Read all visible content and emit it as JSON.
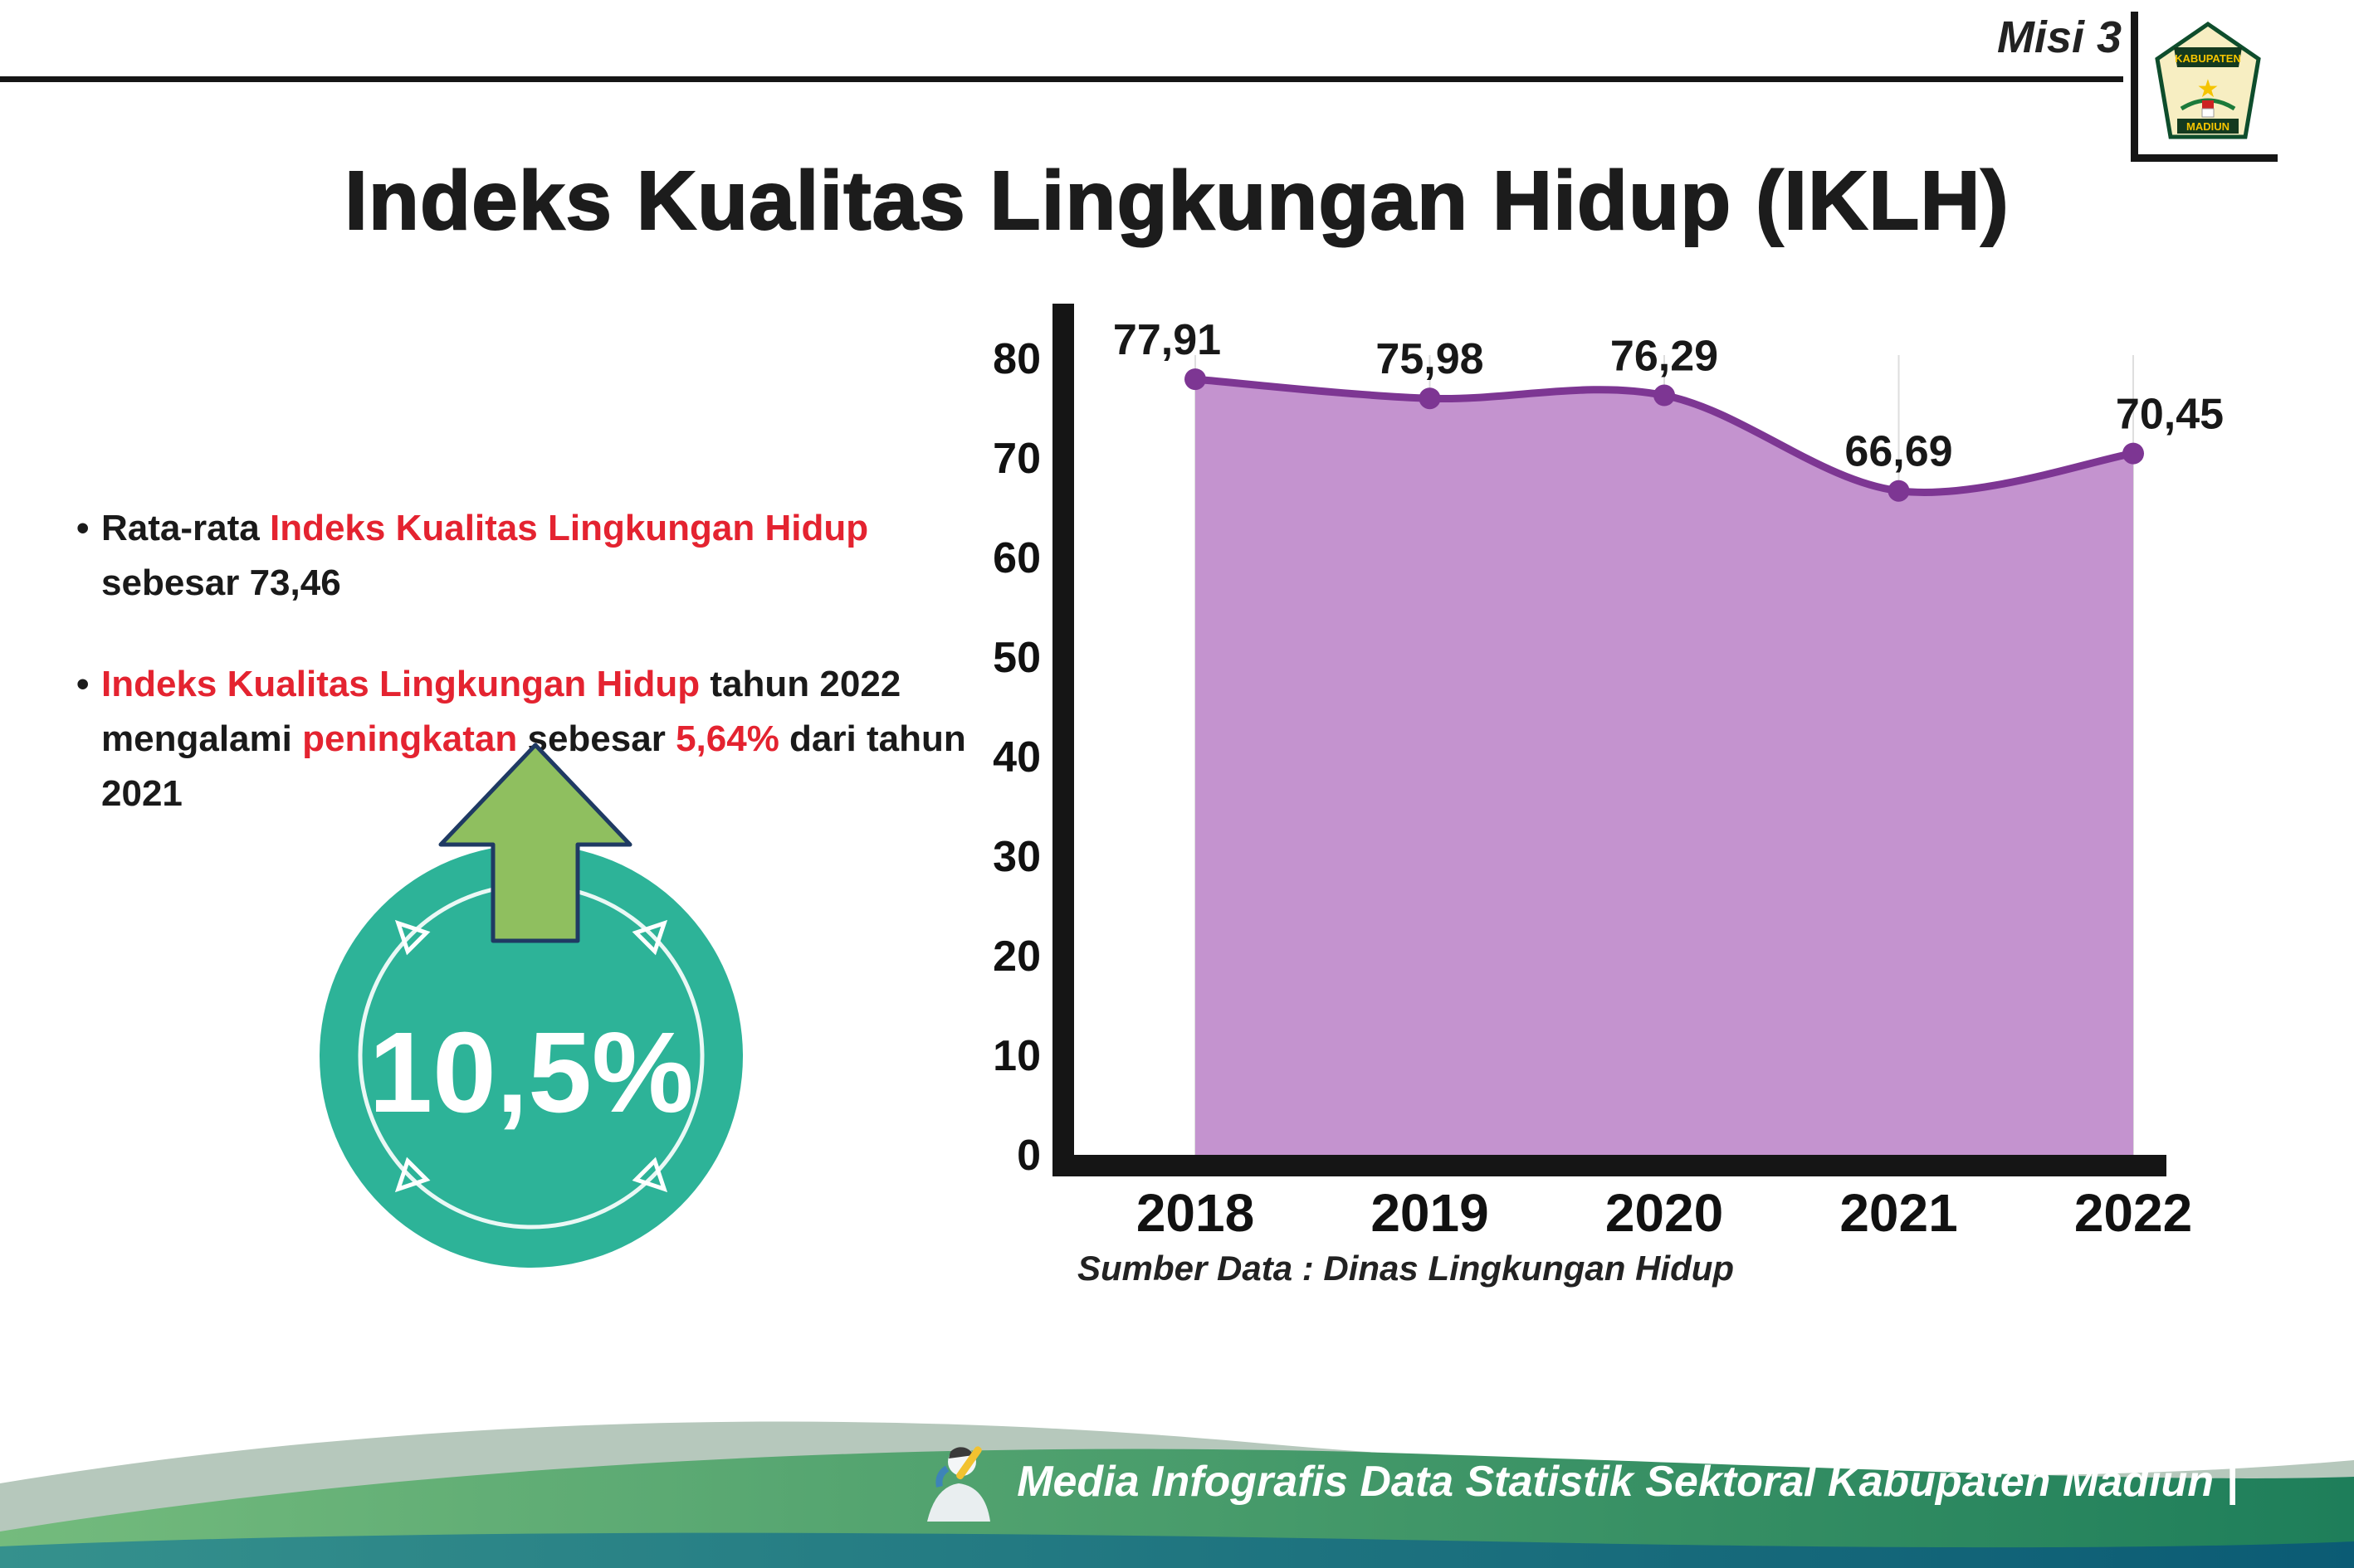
{
  "header": {
    "misi_label": "Misi 3",
    "title": "Indeks Kualitas Lingkungan Hidup (IKLH)",
    "logo": {
      "top_text": "KABUPATEN",
      "bottom_text": "MADIUN"
    }
  },
  "bullets": [
    {
      "marker": "•",
      "segments": [
        {
          "text": "Rata-rata ",
          "emphasis": false
        },
        {
          "text": "Indeks Kualitas Lingkungan Hidup",
          "emphasis": true
        },
        {
          "text": " sebesar 73,46",
          "emphasis": false
        }
      ]
    },
    {
      "marker": "•",
      "segments": [
        {
          "text": "Indeks Kualitas Lingkungan Hidup",
          "emphasis": true
        },
        {
          "text": " tahun 2022 mengalami ",
          "emphasis": false
        },
        {
          "text": "peningkatan",
          "emphasis": true
        },
        {
          "text": " sebesar ",
          "emphasis": false
        },
        {
          "text": "5,64%",
          "emphasis": true
        },
        {
          "text": " dari tahun 2021",
          "emphasis": false
        }
      ]
    }
  ],
  "badge": {
    "value": "10,5%",
    "circle_color": "#2db398",
    "arrow_color": "#8fbf5f",
    "arrow_outline": "#1f3a63"
  },
  "chart_data": {
    "type": "area",
    "categories": [
      "2018",
      "2019",
      "2020",
      "2021",
      "2022"
    ],
    "values": [
      77.91,
      75.98,
      76.29,
      66.69,
      70.45
    ],
    "value_labels": [
      "77,91",
      "75,98",
      "76,29",
      "66,69",
      "70,45"
    ],
    "title": "Indeks Kualitas Lingkungan Hidup (IKLH)",
    "xlabel": "",
    "ylabel": "",
    "ylim": [
      0,
      80
    ],
    "yticks": [
      0,
      10,
      20,
      30,
      40,
      50,
      60,
      70,
      80
    ],
    "grid": "light-vertical",
    "legend": "none",
    "line_color": "#7d3693",
    "fill_color": "#c493cf",
    "axis_color": "#151515",
    "source_note": "Sumber Data : Dinas Lingkungan Hidup"
  },
  "footer": {
    "credit": "Media Infografis Data Statistik Sektoral Kabupaten Madiun |"
  }
}
